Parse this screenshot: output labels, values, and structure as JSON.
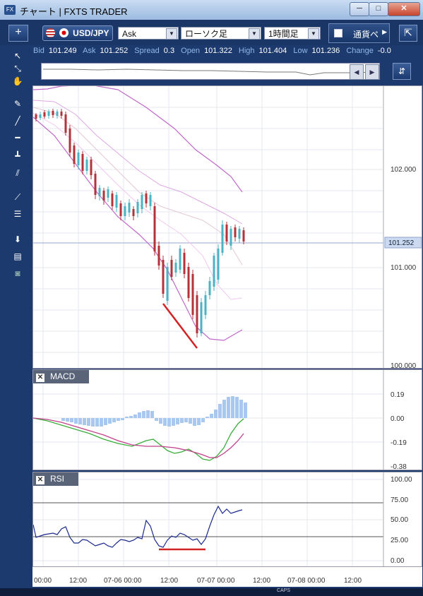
{
  "window": {
    "title": "チャート | FXTS TRADER",
    "icon": "FX",
    "buttons": {
      "minimize": "─",
      "maximize": "□",
      "close": "✕"
    }
  },
  "toolbar": {
    "add_label": "+",
    "pair": "USD/JPY",
    "price_type": "Ask",
    "chart_type": "ローソク足",
    "period": "1時間足",
    "currency_button": "通貨ペ",
    "exit_label": "⇱"
  },
  "quote": {
    "bid_label": "Bid",
    "bid": "101.249",
    "ask_label": "Ask",
    "ask": "101.252",
    "spread_label": "Spread",
    "spread": "0.3",
    "open_label": "Open",
    "open": "101.322",
    "high_label": "High",
    "high": "101.404",
    "low_label": "Low",
    "low": "101.236",
    "change_label": "Change",
    "change": "-0.0"
  },
  "navigator": {
    "left_arrow": "◀",
    "right_arrow": "▶"
  },
  "tools": [
    "pointer-icon",
    "crosshair-icon",
    "hand-icon",
    "pen-icon",
    "line-icon",
    "hline-icon",
    "vline-icon",
    "channel-icon",
    "fan-icon",
    "fib-icon",
    "arrow-down-icon",
    "list-icon",
    "camera-icon"
  ],
  "main_chart": {
    "y_labels": [
      "102.000",
      "101.000",
      "100.000"
    ],
    "current_price_label": "101.252"
  },
  "macd": {
    "title": "MACD",
    "y_labels": [
      "0.19",
      "0.00",
      "-0.19",
      "-0.38"
    ]
  },
  "rsi": {
    "title": "RSI",
    "y_labels": [
      "100.00",
      "75.00",
      "50.00",
      "25.00",
      "0.00"
    ]
  },
  "x_labels": [
    "00:00",
    "12:00",
    "07-06 00:00",
    "12:00",
    "07-07 00:00",
    "12:00",
    "07-08 00:00",
    "12:00"
  ],
  "colors": {
    "bg": "#1d3a6e",
    "up_candle": "#4bb3c4",
    "down_candle": "#b3333a",
    "bollinger": "#c069c8",
    "macd_hist": "#a8c8f0",
    "macd_line": "#3aae3a",
    "signal_line": "#c0408a",
    "rsi_line": "#1b2a8c",
    "trendline": "#d32424"
  },
  "taskbar": {
    "caps": "CAPS"
  }
}
